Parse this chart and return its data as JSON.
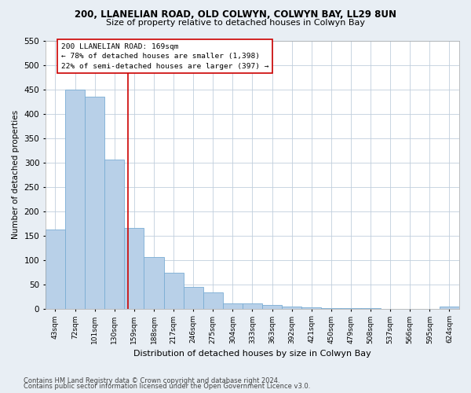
{
  "title1": "200, LLANELIAN ROAD, OLD COLWYN, COLWYN BAY, LL29 8UN",
  "title2": "Size of property relative to detached houses in Colwyn Bay",
  "xlabel": "Distribution of detached houses by size in Colwyn Bay",
  "ylabel": "Number of detached properties",
  "categories": [
    "43sqm",
    "72sqm",
    "101sqm",
    "130sqm",
    "159sqm",
    "188sqm",
    "217sqm",
    "246sqm",
    "275sqm",
    "304sqm",
    "333sqm",
    "363sqm",
    "392sqm",
    "421sqm",
    "450sqm",
    "479sqm",
    "508sqm",
    "537sqm",
    "566sqm",
    "595sqm",
    "624sqm"
  ],
  "values": [
    163,
    450,
    435,
    306,
    165,
    106,
    73,
    44,
    33,
    10,
    10,
    8,
    5,
    2,
    1,
    1,
    1,
    0,
    0,
    0,
    4
  ],
  "bar_color": "#b8d0e8",
  "bar_edge_color": "#7aadd4",
  "vline_x_index": 3.7,
  "vline_color": "#cc0000",
  "annotation_line1": "200 LLANELIAN ROAD: 169sqm",
  "annotation_line2": "← 78% of detached houses are smaller (1,398)",
  "annotation_line3": "22% of semi-detached houses are larger (397) →",
  "annotation_box_color": "#ffffff",
  "annotation_box_edge": "#cc0000",
  "ylim": [
    0,
    550
  ],
  "yticks": [
    0,
    50,
    100,
    150,
    200,
    250,
    300,
    350,
    400,
    450,
    500,
    550
  ],
  "footer1": "Contains HM Land Registry data © Crown copyright and database right 2024.",
  "footer2": "Contains public sector information licensed under the Open Government Licence v3.0.",
  "bg_color": "#e8eef4",
  "plot_bg_color": "#ffffff",
  "grid_color": "#c0cedd"
}
